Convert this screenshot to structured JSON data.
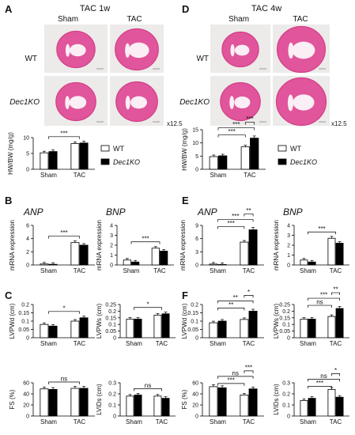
{
  "panels": {
    "A": {
      "letter": "A",
      "title": "TAC 1w",
      "col_labels": [
        "Sham",
        "TAC"
      ],
      "row_labels": [
        "WT",
        "Dec1KO"
      ],
      "magnification": "x12.5"
    },
    "D": {
      "letter": "D",
      "title": "TAC 4w",
      "col_labels": [
        "Sham",
        "TAC"
      ],
      "row_labels": [
        "WT",
        "Dec1KO"
      ],
      "magnification": "x12.5"
    },
    "B": {
      "letter": "B",
      "gene1": "ANP",
      "gene2": "BNP"
    },
    "E": {
      "letter": "E",
      "gene1": "ANP",
      "gene2": "BNP"
    },
    "C": {
      "letter": "C"
    },
    "F": {
      "letter": "F"
    }
  },
  "legend": {
    "wt": "WT",
    "ko": "Dec1KO"
  },
  "colors": {
    "wt_bar": "#ffffff",
    "ko_bar": "#000000",
    "stain": "#e0559b",
    "stain_dark": "#d43f86",
    "photo_bg": "#ecebea"
  },
  "chart_data": [
    {
      "id": "A-hwbw",
      "type": "bar",
      "categories": [
        "Sham",
        "TAC"
      ],
      "ylabel": "HW/BW (mg/g)",
      "ylim": [
        0,
        10
      ],
      "yticks": [
        0,
        5,
        10
      ],
      "series": [
        {
          "name": "WT",
          "values": [
            5.2,
            8.1
          ]
        },
        {
          "name": "Dec1KO",
          "values": [
            5.6,
            8.3
          ]
        }
      ],
      "annotations": [
        {
          "label": "***"
        }
      ]
    },
    {
      "id": "D-hwbw",
      "type": "bar",
      "categories": [
        "Sham",
        "TAC"
      ],
      "ylabel": "HW/BW (mg/g)",
      "ylim": [
        0,
        15
      ],
      "yticks": [
        0,
        5,
        10,
        15
      ],
      "series": [
        {
          "name": "WT",
          "values": [
            4.8,
            8.5
          ]
        },
        {
          "name": "Dec1KO",
          "values": [
            5.1,
            11.8
          ]
        }
      ],
      "annotations": [
        {
          "label": "***"
        },
        {
          "label": "***"
        },
        {
          "label": "***"
        }
      ]
    },
    {
      "id": "B-anp",
      "type": "bar",
      "categories": [
        "Sham",
        "TAC"
      ],
      "ylabel": "mRNA expression",
      "ylim": [
        0,
        6
      ],
      "yticks": [
        0,
        2,
        4,
        6
      ],
      "series": [
        {
          "name": "WT",
          "values": [
            0.15,
            3.4
          ]
        },
        {
          "name": "Dec1KO",
          "values": [
            0.1,
            3.0
          ]
        }
      ],
      "annotations": [
        {
          "label": "***"
        }
      ]
    },
    {
      "id": "B-bnp",
      "type": "bar",
      "categories": [
        "Sham",
        "TAC"
      ],
      "ylabel": "mRNA expression",
      "ylim": [
        0,
        4
      ],
      "yticks": [
        0,
        1,
        2,
        3,
        4
      ],
      "series": [
        {
          "name": "WT",
          "values": [
            0.5,
            1.7
          ]
        },
        {
          "name": "Dec1KO",
          "values": [
            0.3,
            1.4
          ]
        }
      ],
      "annotations": [
        {
          "label": "***"
        }
      ]
    },
    {
      "id": "E-anp",
      "type": "bar",
      "categories": [
        "Sham",
        "TAC"
      ],
      "ylabel": "mRNA expression",
      "ylim": [
        0,
        9
      ],
      "yticks": [
        0,
        3,
        6,
        9
      ],
      "series": [
        {
          "name": "WT",
          "values": [
            0.2,
            5.2
          ]
        },
        {
          "name": "Dec1KO",
          "values": [
            0.1,
            8.0
          ]
        }
      ],
      "annotations": [
        {
          "label": "***"
        },
        {
          "label": "***"
        },
        {
          "label": "**"
        }
      ]
    },
    {
      "id": "E-bnp",
      "type": "bar",
      "categories": [
        "Sham",
        "TAC"
      ],
      "ylabel": "mRNA expression",
      "ylim": [
        0,
        4
      ],
      "yticks": [
        0,
        1,
        2,
        3,
        4
      ],
      "series": [
        {
          "name": "WT",
          "values": [
            0.5,
            2.7
          ]
        },
        {
          "name": "Dec1KO",
          "values": [
            0.3,
            2.2
          ]
        }
      ],
      "annotations": [
        {
          "label": "***"
        }
      ]
    },
    {
      "id": "C-lvpwd",
      "type": "bar",
      "categories": [
        "Sham",
        "TAC"
      ],
      "ylabel": "LVPWd (cm)",
      "ylim": [
        0,
        0.2
      ],
      "yticks": [
        0,
        0.05,
        0.1,
        0.15,
        0.2
      ],
      "series": [
        {
          "name": "WT",
          "values": [
            0.08,
            0.1
          ]
        },
        {
          "name": "Dec1KO",
          "values": [
            0.07,
            0.12
          ]
        }
      ],
      "annotations": [
        {
          "label": "*"
        }
      ]
    },
    {
      "id": "C-lvpws",
      "type": "bar",
      "categories": [
        "Sham",
        "TAC"
      ],
      "ylabel": "LVPWs (cm)",
      "ylim": [
        0,
        0.25
      ],
      "yticks": [
        0,
        0.05,
        0.1,
        0.15,
        0.2,
        0.25
      ],
      "series": [
        {
          "name": "WT",
          "values": [
            0.14,
            0.17
          ]
        },
        {
          "name": "Dec1KO",
          "values": [
            0.14,
            0.18
          ]
        }
      ],
      "annotations": [
        {
          "label": "*"
        }
      ]
    },
    {
      "id": "F-lvpwd",
      "type": "bar",
      "categories": [
        "Sham",
        "TAC"
      ],
      "ylabel": "LVPWd (cm)",
      "ylim": [
        0,
        0.2
      ],
      "yticks": [
        0,
        0.05,
        0.1,
        0.15,
        0.2
      ],
      "series": [
        {
          "name": "WT",
          "values": [
            0.09,
            0.11
          ]
        },
        {
          "name": "Dec1KO",
          "values": [
            0.1,
            0.16
          ]
        }
      ],
      "annotations": [
        {
          "label": "**"
        },
        {
          "label": "**"
        },
        {
          "label": "*"
        }
      ]
    },
    {
      "id": "F-lvpws",
      "type": "bar",
      "categories": [
        "Sham",
        "TAC"
      ],
      "ylabel": "LVPWs (cm)",
      "ylim": [
        0,
        0.25
      ],
      "yticks": [
        0,
        0.05,
        0.1,
        0.15,
        0.2,
        0.25
      ],
      "series": [
        {
          "name": "WT",
          "values": [
            0.14,
            0.16
          ]
        },
        {
          "name": "Dec1KO",
          "values": [
            0.14,
            0.22
          ]
        }
      ],
      "annotations": [
        {
          "label": "ns"
        },
        {
          "label": "***"
        },
        {
          "label": "**"
        }
      ]
    },
    {
      "id": "C-fs",
      "type": "bar",
      "categories": [
        "Sham",
        "TAC"
      ],
      "ylabel": "FS (%)",
      "ylim": [
        0,
        60
      ],
      "yticks": [
        0,
        20,
        40,
        60
      ],
      "series": [
        {
          "name": "WT",
          "values": [
            49,
            50
          ]
        },
        {
          "name": "Dec1KO",
          "values": [
            48,
            50
          ]
        }
      ],
      "annotations": [
        {
          "label": "ns"
        }
      ]
    },
    {
      "id": "C-lvids",
      "type": "bar",
      "categories": [
        "Sham",
        "TAC"
      ],
      "ylabel": "LVIDs (cm)",
      "ylim": [
        0,
        0.3
      ],
      "yticks": [
        0,
        0.1,
        0.2,
        0.3
      ],
      "series": [
        {
          "name": "WT",
          "values": [
            0.18,
            0.18
          ]
        },
        {
          "name": "Dec1KO",
          "values": [
            0.19,
            0.16
          ]
        }
      ],
      "annotations": [
        {
          "label": "ns"
        }
      ]
    },
    {
      "id": "F-fs",
      "type": "bar",
      "categories": [
        "Sham",
        "TAC"
      ],
      "ylabel": "FS (%)",
      "ylim": [
        0,
        60
      ],
      "yticks": [
        0,
        20,
        40,
        60
      ],
      "series": [
        {
          "name": "WT",
          "values": [
            53,
            38
          ]
        },
        {
          "name": "Dec1KO",
          "values": [
            51,
            49
          ]
        }
      ],
      "annotations": [
        {
          "label": "***"
        },
        {
          "label": "ns"
        },
        {
          "label": "***"
        }
      ]
    },
    {
      "id": "F-lvids",
      "type": "bar",
      "categories": [
        "Sham",
        "TAC"
      ],
      "ylabel": "LVIDs (cm)",
      "ylim": [
        0,
        0.3
      ],
      "yticks": [
        0,
        0.1,
        0.2,
        0.3
      ],
      "series": [
        {
          "name": "WT",
          "values": [
            0.14,
            0.24
          ]
        },
        {
          "name": "Dec1KO",
          "values": [
            0.16,
            0.17
          ]
        }
      ],
      "annotations": [
        {
          "label": "***"
        },
        {
          "label": "ns"
        },
        {
          "label": "*"
        }
      ]
    }
  ]
}
